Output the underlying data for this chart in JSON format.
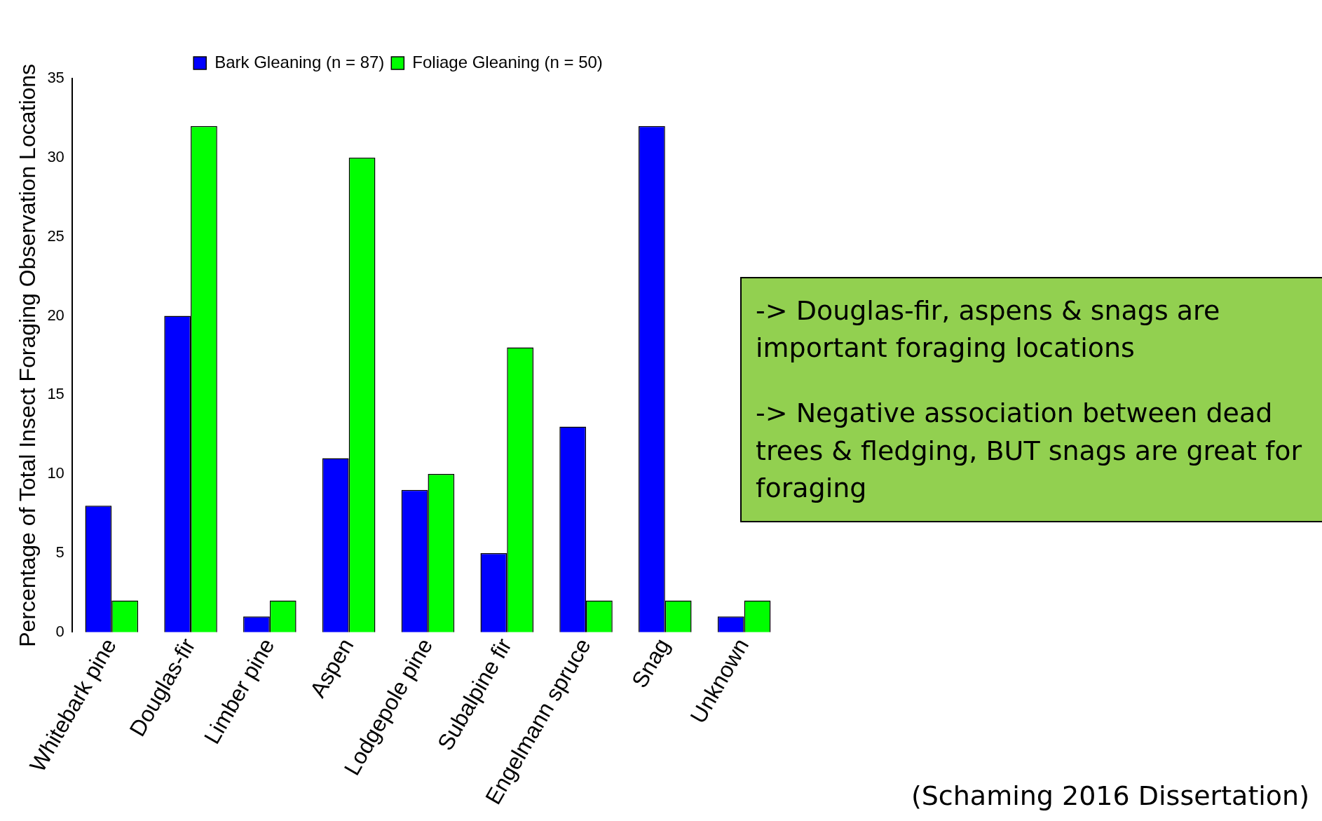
{
  "chart_data": {
    "type": "bar",
    "ylabel": "Percentage of Total Insect Foraging Observation Locations",
    "categories": [
      "Whitebark pine",
      "Douglas-fir",
      "Limber pine",
      "Aspen",
      "Lodgepole pine",
      "Subalpine fir",
      "Engelmann spruce",
      "Snag",
      "Unknown"
    ],
    "series": [
      {
        "name": "Bark Gleaning (n = 87)",
        "color": "#0000ff",
        "values": [
          8,
          20,
          1,
          11,
          9,
          5,
          13,
          32,
          1
        ]
      },
      {
        "name": "Foliage Gleaning (n = 50)",
        "color": "#00ff00",
        "values": [
          2,
          32,
          2,
          30,
          10,
          18,
          2,
          2,
          2
        ]
      }
    ],
    "ylim": [
      0,
      35
    ],
    "yticks": [
      0,
      5,
      10,
      15,
      20,
      25,
      30,
      35
    ],
    "grid": false,
    "legend": "top",
    "annotations": [
      "-> Douglas-fir, aspens & snags are important foraging locations",
      "-> Negative association between dead trees & fledging, BUT snags are great for foraging",
      "(Schaming 2016 Dissertation)"
    ]
  }
}
